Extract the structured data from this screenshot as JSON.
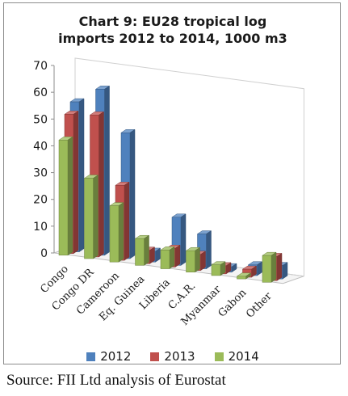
{
  "chart_data": {
    "type": "bar",
    "title_line1": "Chart 9: EU28 tropical log",
    "title_line2": "imports 2012 to 2014, 1000 m3",
    "categories": [
      "Congo",
      "Congo DR",
      "Cameroon",
      "Eq. Guinea",
      "Liberia",
      "C.A.R.",
      "Myanmar",
      "Gabon",
      "Other"
    ],
    "series": [
      {
        "name": "2012",
        "color": "#4f81bd",
        "values": [
          56,
          62,
          47,
          4,
          18,
          13,
          2,
          4,
          5
        ]
      },
      {
        "name": "2013",
        "color": "#c0504d",
        "values": [
          52,
          53,
          28,
          5,
          7,
          6,
          3,
          3,
          9
        ]
      },
      {
        "name": "2014",
        "color": "#9bbb59",
        "values": [
          43,
          30,
          21,
          10,
          7,
          8,
          4,
          1,
          10
        ]
      }
    ],
    "yticks": [
      "0",
      "10",
      "20",
      "30",
      "40",
      "50",
      "60",
      "70"
    ],
    "ylim": [
      0,
      70
    ],
    "grid": false,
    "legend_position": "bottom"
  },
  "source_text": "Source: FII Ltd analysis of Eurostat"
}
